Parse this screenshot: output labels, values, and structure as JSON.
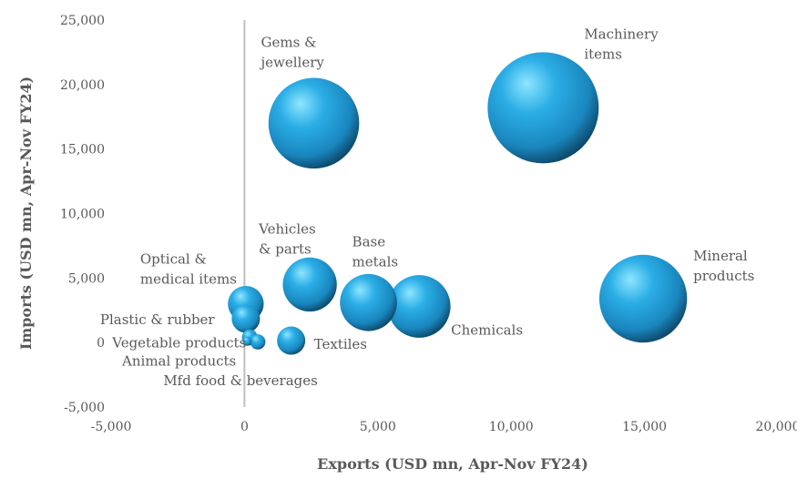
{
  "chart_data": {
    "type": "bubble",
    "title": "",
    "xlabel": "Exports (USD mn, Apr-Nov FY24)",
    "ylabel": "Imports (USD mn, Apr-Nov FY24)",
    "xlim": [
      -5000,
      20000
    ],
    "ylim": [
      -5000,
      25000
    ],
    "xticks": [
      "-5,000",
      "0",
      "5,000",
      "10,000",
      "15,000",
      "20,000"
    ],
    "yticks": [
      "-5,000",
      "0",
      "5,000",
      "10,000",
      "15,000",
      "20,000",
      "25,000"
    ],
    "xtick_values": [
      -5000,
      0,
      5000,
      10000,
      15000,
      20000
    ],
    "ytick_values": [
      -5000,
      0,
      5000,
      10000,
      15000,
      20000,
      25000
    ],
    "grid": false,
    "bubble_color": "#1E9FD8",
    "points": [
      {
        "label": "Gems & jewellery",
        "lines": [
          "Gems &",
          "jewellery"
        ],
        "x": 2600,
        "y": 17000,
        "size": 19600
      },
      {
        "label": "Machinery items",
        "lines": [
          "Machinery",
          "items"
        ],
        "x": 11200,
        "y": 18200,
        "size": 29400
      },
      {
        "label": "Mineral products",
        "lines": [
          "Mineral",
          "products"
        ],
        "x": 14950,
        "y": 3400,
        "size": 18350
      },
      {
        "label": "Chemicals",
        "lines": [
          "Chemicals"
        ],
        "x": 6550,
        "y": 2800,
        "size": 9350
      },
      {
        "label": "Base metals",
        "lines": [
          "Base",
          "metals"
        ],
        "x": 4650,
        "y": 3100,
        "size": 7750
      },
      {
        "label": "Vehicles & parts",
        "lines": [
          "Vehicles",
          "& parts"
        ],
        "x": 2450,
        "y": 4500,
        "size": 6950
      },
      {
        "label": "Optical & medical items",
        "lines": [
          "Optical &",
          "medical items"
        ],
        "x": 50,
        "y": 3000,
        "size": 3050
      },
      {
        "label": "Plastic & rubber",
        "lines": [
          "Plastic & rubber"
        ],
        "x": 50,
        "y": 1850,
        "size": 1900
      },
      {
        "label": "Textiles",
        "lines": [
          "Textiles"
        ],
        "x": 1750,
        "y": 150,
        "size": 1900
      },
      {
        "label": "Vegetable products",
        "lines": [
          "Vegetable products"
        ],
        "x": 200,
        "y": 400,
        "size": 600
      },
      {
        "label": "Animal products",
        "lines": [
          "Animal products"
        ],
        "x": 500,
        "y": 50,
        "size": 550
      },
      {
        "label": "Mfd food & beverages",
        "lines": [
          "Mfd food & beverages"
        ],
        "x": 100,
        "y": 100,
        "size": 200
      }
    ]
  }
}
